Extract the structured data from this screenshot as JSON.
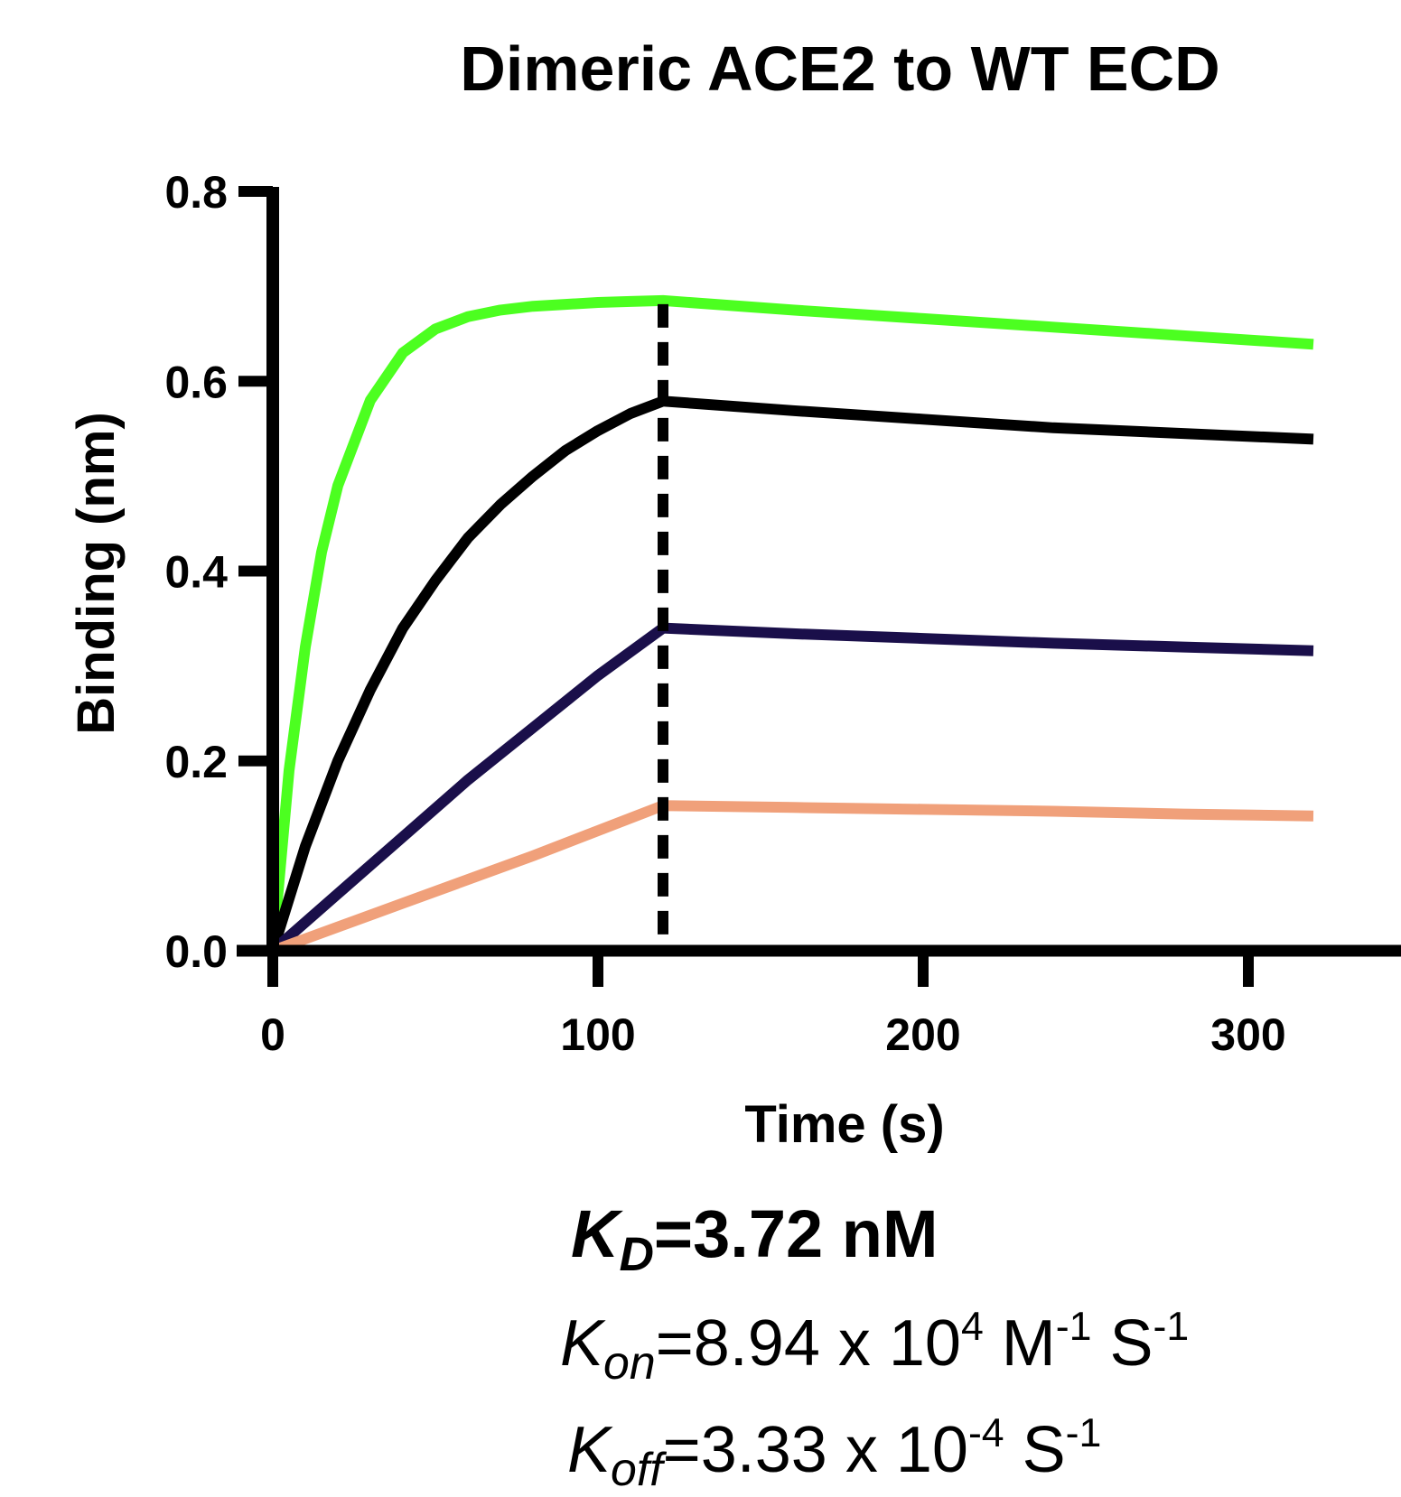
{
  "chart_data": {
    "type": "line",
    "title": "Dimeric ACE2 to WT ECD",
    "xlabel": "Time (s)",
    "ylabel": "Binding (nm)",
    "xlim": [
      0,
      345
    ],
    "ylim": [
      0,
      0.8
    ],
    "xticks": [
      0,
      100,
      200,
      300
    ],
    "xtick_labels": [
      "0",
      "100",
      "200",
      "300"
    ],
    "yticks": [
      0,
      0.2,
      0.4,
      0.6,
      0.8
    ],
    "ytick_labels": [
      "0.0",
      "0.2",
      "0.4",
      "0.6",
      "0.8"
    ],
    "grid": false,
    "legend": "none",
    "vertical_marker": {
      "x": 120,
      "style": "dashed",
      "color": "#000000"
    },
    "series": [
      {
        "color": "#4cff20",
        "x": [
          0,
          5,
          10,
          15,
          20,
          30,
          40,
          50,
          60,
          70,
          80,
          90,
          100,
          110,
          120,
          160,
          200,
          240,
          280,
          320
        ],
        "y": [
          0,
          0.19,
          0.32,
          0.42,
          0.49,
          0.58,
          0.63,
          0.655,
          0.668,
          0.675,
          0.679,
          0.681,
          0.683,
          0.684,
          0.685,
          0.675,
          0.666,
          0.657,
          0.648,
          0.639
        ]
      },
      {
        "color": "#000000",
        "x": [
          0,
          10,
          20,
          30,
          40,
          50,
          60,
          70,
          80,
          90,
          100,
          110,
          120,
          160,
          200,
          240,
          280,
          320
        ],
        "y": [
          0,
          0.11,
          0.2,
          0.275,
          0.34,
          0.39,
          0.435,
          0.47,
          0.5,
          0.527,
          0.548,
          0.566,
          0.579,
          0.569,
          0.56,
          0.551,
          0.545,
          0.539
        ]
      },
      {
        "color": "#1a0f4a",
        "x": [
          0,
          20,
          40,
          60,
          80,
          100,
          120,
          160,
          200,
          240,
          280,
          320
        ],
        "y": [
          0,
          0.06,
          0.12,
          0.18,
          0.235,
          0.29,
          0.34,
          0.334,
          0.329,
          0.324,
          0.32,
          0.316
        ]
      },
      {
        "color": "#f0a07a",
        "x": [
          0,
          40,
          80,
          120,
          160,
          200,
          240,
          280,
          320
        ],
        "y": [
          0,
          0.05,
          0.1,
          0.153,
          0.151,
          0.149,
          0.147,
          0.144,
          0.142
        ]
      }
    ]
  },
  "kinetics": {
    "kd": {
      "symbol": "K",
      "subscript": "D",
      "text": "=3.72 nM"
    },
    "kon": {
      "symbol": "K",
      "subscript": "on",
      "text": "=8.94 x 10",
      "exponent": "4",
      "unit1": " M",
      "unit1_exponent": "-1",
      "unit2": " S",
      "unit2_exponent": "-1"
    },
    "koff": {
      "symbol": "K",
      "subscript": "off",
      "text": "=3.33 x 10",
      "exponent": "-4",
      "unit2": "  S",
      "unit2_exponent": "-1"
    }
  }
}
